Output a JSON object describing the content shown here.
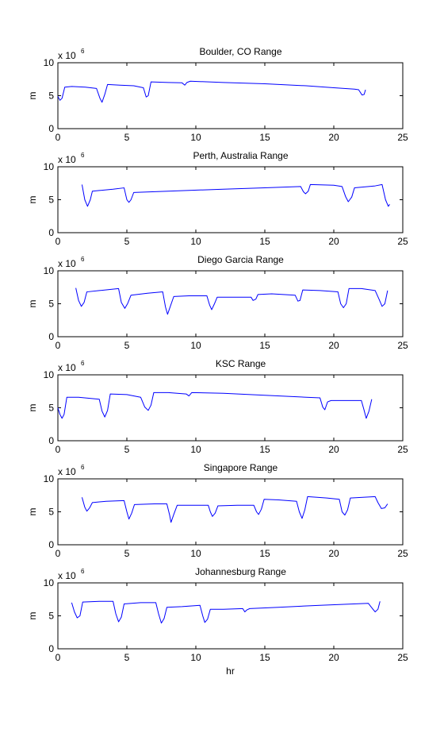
{
  "chart_data": [
    {
      "type": "line",
      "title": "Boulder, CO Range",
      "ylabel": "m",
      "xlabel": "",
      "y_multiplier": "x 10",
      "y_exponent": "6",
      "xlim": [
        0,
        25
      ],
      "ylim": [
        0,
        10
      ],
      "xticks": [
        "0",
        "5",
        "10",
        "15",
        "20",
        "25"
      ],
      "yticks": [
        "0",
        "5",
        "10"
      ],
      "color": "#0000ff",
      "segments": [
        [
          [
            0,
            4.9
          ],
          [
            0.15,
            4.3
          ],
          [
            0.3,
            4.6
          ],
          [
            0.5,
            6.3
          ],
          [
            1,
            6.4
          ],
          [
            2,
            6.3
          ],
          [
            2.8,
            6.1
          ],
          [
            3.05,
            4.6
          ],
          [
            3.2,
            4.0
          ],
          [
            3.4,
            5.2
          ],
          [
            3.6,
            6.7
          ],
          [
            4.5,
            6.6
          ],
          [
            5.5,
            6.5
          ],
          [
            6.2,
            6.2
          ],
          [
            6.4,
            4.8
          ],
          [
            6.55,
            5.0
          ],
          [
            6.75,
            7.1
          ],
          [
            8,
            7.0
          ],
          [
            9,
            6.95
          ],
          [
            9.2,
            6.6
          ],
          [
            9.35,
            7.0
          ],
          [
            9.6,
            7.2
          ],
          [
            12,
            7.0
          ],
          [
            15,
            6.8
          ],
          [
            18,
            6.5
          ],
          [
            20,
            6.2
          ],
          [
            21.5,
            6.0
          ],
          [
            21.8,
            5.9
          ],
          [
            22.05,
            5.1
          ],
          [
            22.2,
            5.2
          ],
          [
            22.3,
            5.9
          ]
        ]
      ]
    },
    {
      "type": "line",
      "title": "Perth, Australia Range",
      "ylabel": "m",
      "xlabel": "",
      "y_multiplier": "x 10",
      "y_exponent": "6",
      "xlim": [
        0,
        25
      ],
      "ylim": [
        0,
        10
      ],
      "xticks": [
        "0",
        "5",
        "10",
        "15",
        "20",
        "25"
      ],
      "yticks": [
        "0",
        "5",
        "10"
      ],
      "color": "#0000ff",
      "segments": [
        [
          [
            1.75,
            7.3
          ],
          [
            1.95,
            5.0
          ],
          [
            2.15,
            4.0
          ],
          [
            2.35,
            5.0
          ],
          [
            2.5,
            6.3
          ],
          [
            3,
            6.4
          ],
          [
            4,
            6.6
          ],
          [
            4.8,
            6.8
          ],
          [
            5,
            5.0
          ],
          [
            5.15,
            4.6
          ],
          [
            5.3,
            5.0
          ],
          [
            5.5,
            6.1
          ],
          [
            8,
            6.3
          ],
          [
            12,
            6.6
          ],
          [
            15,
            6.8
          ],
          [
            17.6,
            7.0
          ],
          [
            17.8,
            6.2
          ],
          [
            17.95,
            5.9
          ],
          [
            18.15,
            6.3
          ],
          [
            18.3,
            7.3
          ],
          [
            20,
            7.2
          ],
          [
            20.6,
            7.0
          ],
          [
            20.85,
            5.5
          ],
          [
            21.05,
            4.7
          ],
          [
            21.3,
            5.4
          ],
          [
            21.5,
            6.8
          ],
          [
            23,
            7.1
          ],
          [
            23.5,
            7.3
          ],
          [
            23.75,
            5.0
          ],
          [
            23.95,
            4.0
          ],
          [
            24.05,
            4.3
          ]
        ]
      ]
    },
    {
      "type": "line",
      "title": "Diego Garcia Range",
      "ylabel": "m",
      "xlabel": "",
      "y_multiplier": "x 10",
      "y_exponent": "6",
      "xlim": [
        0,
        25
      ],
      "ylim": [
        0,
        10
      ],
      "xticks": [
        "0",
        "5",
        "10",
        "15",
        "20",
        "25"
      ],
      "yticks": [
        "0",
        "5",
        "10"
      ],
      "color": "#0000ff",
      "segments": [
        [
          [
            1.3,
            7.4
          ],
          [
            1.5,
            5.5
          ],
          [
            1.7,
            4.6
          ],
          [
            1.9,
            5.2
          ],
          [
            2.1,
            6.8
          ],
          [
            3,
            7.0
          ],
          [
            4.4,
            7.3
          ],
          [
            4.6,
            5.2
          ],
          [
            4.85,
            4.3
          ],
          [
            5.05,
            5.0
          ],
          [
            5.3,
            6.3
          ],
          [
            6.5,
            6.6
          ],
          [
            7.6,
            6.8
          ],
          [
            7.8,
            4.5
          ],
          [
            7.95,
            3.4
          ],
          [
            8.15,
            4.6
          ],
          [
            8.4,
            6.1
          ],
          [
            9.5,
            6.2
          ],
          [
            10.8,
            6.2
          ],
          [
            11.0,
            4.8
          ],
          [
            11.15,
            4.1
          ],
          [
            11.35,
            5.0
          ],
          [
            11.55,
            6.0
          ],
          [
            13,
            6.0
          ],
          [
            14,
            6.0
          ],
          [
            14.15,
            5.5
          ],
          [
            14.35,
            5.7
          ],
          [
            14.5,
            6.4
          ],
          [
            15.5,
            6.5
          ],
          [
            17.2,
            6.3
          ],
          [
            17.4,
            5.4
          ],
          [
            17.55,
            5.5
          ],
          [
            17.75,
            7.1
          ],
          [
            19,
            7.0
          ],
          [
            20.3,
            6.8
          ],
          [
            20.5,
            5.0
          ],
          [
            20.7,
            4.4
          ],
          [
            20.9,
            5.0
          ],
          [
            21.1,
            7.3
          ],
          [
            22,
            7.3
          ],
          [
            23,
            7.0
          ],
          [
            23.3,
            5.6
          ],
          [
            23.5,
            4.6
          ],
          [
            23.7,
            5.0
          ],
          [
            23.9,
            7.0
          ]
        ]
      ]
    },
    {
      "type": "line",
      "title": "KSC Range",
      "ylabel": "m",
      "xlabel": "",
      "y_multiplier": "x 10",
      "y_exponent": "6",
      "xlim": [
        0,
        25
      ],
      "ylim": [
        0,
        10
      ],
      "xticks": [
        "0",
        "5",
        "10",
        "15",
        "20",
        "25"
      ],
      "yticks": [
        "0",
        "5",
        "10"
      ],
      "color": "#0000ff",
      "segments": [
        [
          [
            0,
            5.0
          ],
          [
            0.15,
            4.0
          ],
          [
            0.3,
            3.4
          ],
          [
            0.45,
            4.0
          ],
          [
            0.65,
            6.6
          ],
          [
            1.5,
            6.6
          ],
          [
            3,
            6.3
          ],
          [
            3.2,
            4.5
          ],
          [
            3.4,
            3.6
          ],
          [
            3.6,
            4.6
          ],
          [
            3.8,
            7.1
          ],
          [
            5,
            7.0
          ],
          [
            6,
            6.6
          ],
          [
            6.3,
            5.1
          ],
          [
            6.55,
            4.6
          ],
          [
            6.75,
            5.4
          ],
          [
            6.95,
            7.3
          ],
          [
            8,
            7.3
          ],
          [
            9.3,
            7.1
          ],
          [
            9.5,
            6.8
          ],
          [
            9.7,
            7.3
          ],
          [
            12,
            7.2
          ],
          [
            15,
            6.9
          ],
          [
            18,
            6.6
          ],
          [
            19,
            6.5
          ],
          [
            19.2,
            5.1
          ],
          [
            19.35,
            4.7
          ],
          [
            19.55,
            5.9
          ],
          [
            19.8,
            6.1
          ],
          [
            21,
            6.1
          ],
          [
            22,
            6.1
          ],
          [
            22.2,
            4.6
          ],
          [
            22.35,
            3.4
          ],
          [
            22.55,
            4.5
          ],
          [
            22.75,
            6.3
          ]
        ]
      ]
    },
    {
      "type": "line",
      "title": "Singapore Range",
      "ylabel": "m",
      "xlabel": "",
      "y_multiplier": "x 10",
      "y_exponent": "6",
      "xlim": [
        0,
        25
      ],
      "ylim": [
        0,
        10
      ],
      "xticks": [
        "0",
        "5",
        "10",
        "15",
        "20",
        "25"
      ],
      "yticks": [
        "0",
        "5",
        "10"
      ],
      "color": "#0000ff",
      "segments": [
        [
          [
            1.75,
            7.2
          ],
          [
            1.95,
            5.7
          ],
          [
            2.1,
            5.1
          ],
          [
            2.3,
            5.6
          ],
          [
            2.5,
            6.4
          ],
          [
            3.5,
            6.6
          ],
          [
            4.8,
            6.7
          ],
          [
            5,
            5.0
          ],
          [
            5.15,
            3.9
          ],
          [
            5.35,
            4.8
          ],
          [
            5.55,
            6.1
          ],
          [
            7,
            6.2
          ],
          [
            7.9,
            6.2
          ],
          [
            8.1,
            4.5
          ],
          [
            8.2,
            3.4
          ],
          [
            8.4,
            4.6
          ],
          [
            8.65,
            6.0
          ],
          [
            10,
            6.0
          ],
          [
            10.9,
            6.0
          ],
          [
            11.05,
            5.0
          ],
          [
            11.2,
            4.3
          ],
          [
            11.4,
            4.8
          ],
          [
            11.6,
            5.9
          ],
          [
            13,
            6.0
          ],
          [
            14.2,
            6.0
          ],
          [
            14.4,
            5.0
          ],
          [
            14.55,
            4.6
          ],
          [
            14.75,
            5.4
          ],
          [
            14.95,
            6.9
          ],
          [
            16,
            6.8
          ],
          [
            17.3,
            6.6
          ],
          [
            17.5,
            5.0
          ],
          [
            17.7,
            4.0
          ],
          [
            17.9,
            5.3
          ],
          [
            18.1,
            7.3
          ],
          [
            19.5,
            7.1
          ],
          [
            20.4,
            6.9
          ],
          [
            20.6,
            5.0
          ],
          [
            20.8,
            4.5
          ],
          [
            21,
            5.3
          ],
          [
            21.2,
            7.1
          ],
          [
            23,
            7.3
          ],
          [
            23.2,
            6.4
          ],
          [
            23.45,
            5.5
          ],
          [
            23.7,
            5.6
          ],
          [
            23.9,
            6.2
          ]
        ]
      ]
    },
    {
      "type": "line",
      "title": "Johannesburg Range",
      "ylabel": "m",
      "xlabel": "hr",
      "y_multiplier": "x 10",
      "y_exponent": "6",
      "xlim": [
        0,
        25
      ],
      "ylim": [
        0,
        10
      ],
      "xticks": [
        "0",
        "5",
        "10",
        "15",
        "20",
        "25"
      ],
      "yticks": [
        "0",
        "5",
        "10"
      ],
      "color": "#0000ff",
      "segments": [
        [
          [
            1,
            7.0
          ],
          [
            1.2,
            5.6
          ],
          [
            1.4,
            4.7
          ],
          [
            1.6,
            5.0
          ],
          [
            1.8,
            7.1
          ],
          [
            3,
            7.2
          ],
          [
            4,
            7.2
          ],
          [
            4.2,
            5.3
          ],
          [
            4.4,
            4.1
          ],
          [
            4.6,
            4.8
          ],
          [
            4.8,
            6.8
          ],
          [
            6,
            7.0
          ],
          [
            7.1,
            7.0
          ],
          [
            7.3,
            5.3
          ],
          [
            7.5,
            3.9
          ],
          [
            7.7,
            4.6
          ],
          [
            7.9,
            6.3
          ],
          [
            9,
            6.4
          ],
          [
            10.3,
            6.6
          ],
          [
            10.5,
            5.0
          ],
          [
            10.65,
            4.0
          ],
          [
            10.85,
            4.5
          ],
          [
            11.05,
            6.0
          ],
          [
            12,
            6.0
          ],
          [
            13.4,
            6.1
          ],
          [
            13.55,
            5.6
          ],
          [
            13.7,
            5.9
          ],
          [
            13.9,
            6.1
          ],
          [
            16,
            6.3
          ],
          [
            19,
            6.6
          ],
          [
            22.5,
            6.9
          ],
          [
            22.8,
            6.1
          ],
          [
            23,
            5.6
          ],
          [
            23.2,
            6.0
          ],
          [
            23.35,
            7.2
          ]
        ]
      ]
    }
  ]
}
